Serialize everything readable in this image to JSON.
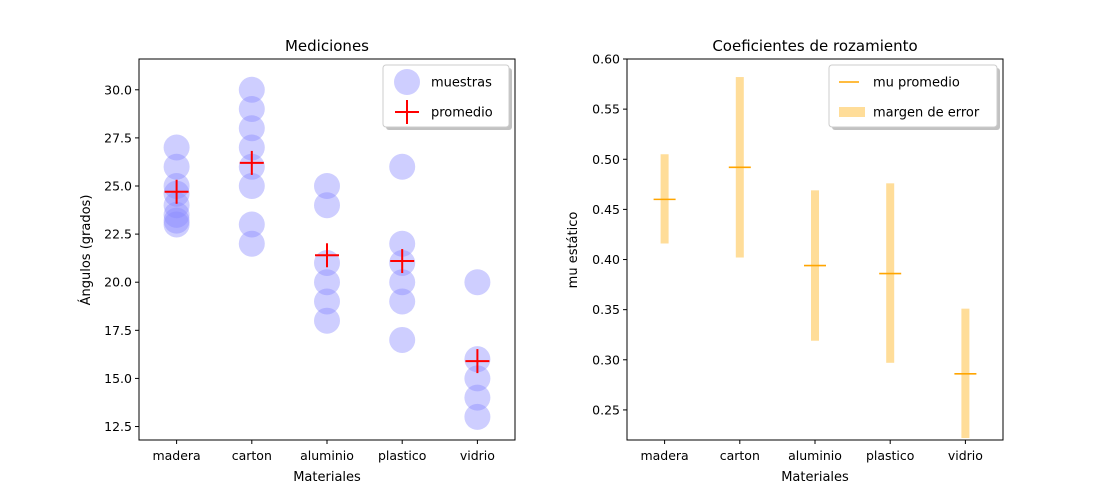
{
  "chart_data": [
    {
      "type": "scatter",
      "title": "Mediciones",
      "xlabel": "Materiales",
      "ylabel": "Ángulos (grados)",
      "categories": [
        "madera",
        "carton",
        "aluminio",
        "plastico",
        "vidrio"
      ],
      "ylim": [
        11.8,
        31.6
      ],
      "yticks": [
        "12.5",
        "15.0",
        "17.5",
        "20.0",
        "22.5",
        "25.0",
        "27.5",
        "30.0"
      ],
      "legend": {
        "position": "top-right",
        "entries": [
          {
            "label": "muestras",
            "marker": "circle"
          },
          {
            "label": "promedio",
            "marker": "cross"
          }
        ]
      },
      "series": [
        {
          "name": "muestras",
          "color": "#8a8aff",
          "points": [
            {
              "x": "madera",
              "y": 27.0
            },
            {
              "x": "madera",
              "y": 26.0
            },
            {
              "x": "madera",
              "y": 25.0
            },
            {
              "x": "madera",
              "y": 24.6
            },
            {
              "x": "madera",
              "y": 24.0
            },
            {
              "x": "madera",
              "y": 23.5
            },
            {
              "x": "madera",
              "y": 23.2
            },
            {
              "x": "madera",
              "y": 23.0
            },
            {
              "x": "carton",
              "y": 30.0
            },
            {
              "x": "carton",
              "y": 29.0
            },
            {
              "x": "carton",
              "y": 28.0
            },
            {
              "x": "carton",
              "y": 27.0
            },
            {
              "x": "carton",
              "y": 26.0
            },
            {
              "x": "carton",
              "y": 25.0
            },
            {
              "x": "carton",
              "y": 23.0
            },
            {
              "x": "carton",
              "y": 22.0
            },
            {
              "x": "aluminio",
              "y": 25.0
            },
            {
              "x": "aluminio",
              "y": 24.0
            },
            {
              "x": "aluminio",
              "y": 21.0
            },
            {
              "x": "aluminio",
              "y": 20.0
            },
            {
              "x": "aluminio",
              "y": 19.0
            },
            {
              "x": "aluminio",
              "y": 18.0
            },
            {
              "x": "plastico",
              "y": 26.0
            },
            {
              "x": "plastico",
              "y": 22.0
            },
            {
              "x": "plastico",
              "y": 21.0
            },
            {
              "x": "plastico",
              "y": 20.0
            },
            {
              "x": "plastico",
              "y": 19.0
            },
            {
              "x": "plastico",
              "y": 17.0
            },
            {
              "x": "vidrio",
              "y": 20.0
            },
            {
              "x": "vidrio",
              "y": 16.0
            },
            {
              "x": "vidrio",
              "y": 15.0
            },
            {
              "x": "vidrio",
              "y": 14.0
            },
            {
              "x": "vidrio",
              "y": 13.0
            }
          ]
        },
        {
          "name": "promedio",
          "color": "#ff0000",
          "points": [
            {
              "x": "madera",
              "y": 24.7
            },
            {
              "x": "carton",
              "y": 26.2
            },
            {
              "x": "aluminio",
              "y": 21.4
            },
            {
              "x": "plastico",
              "y": 21.1
            },
            {
              "x": "vidrio",
              "y": 15.9
            }
          ]
        }
      ]
    },
    {
      "type": "bar",
      "title": "Coeficientes de rozamiento",
      "xlabel": "Materiales",
      "ylabel": "mu estático",
      "categories": [
        "madera",
        "carton",
        "aluminio",
        "plastico",
        "vidrio"
      ],
      "ylim": [
        0.22,
        0.6
      ],
      "yticks": [
        "0.25",
        "0.30",
        "0.35",
        "0.40",
        "0.45",
        "0.50",
        "0.55",
        "0.60"
      ],
      "legend": {
        "position": "top-right",
        "entries": [
          {
            "label": "mu promedio",
            "marker": "line"
          },
          {
            "label": "margen de error",
            "marker": "patch"
          }
        ]
      },
      "series": [
        {
          "name": "mu promedio",
          "color": "#ffa500",
          "values": [
            0.46,
            0.492,
            0.394,
            0.386,
            0.286
          ]
        },
        {
          "name": "margen de error",
          "color": "#ffdd99",
          "low": [
            0.416,
            0.402,
            0.319,
            0.297,
            0.222
          ],
          "high": [
            0.505,
            0.582,
            0.469,
            0.476,
            0.351
          ]
        }
      ]
    }
  ]
}
